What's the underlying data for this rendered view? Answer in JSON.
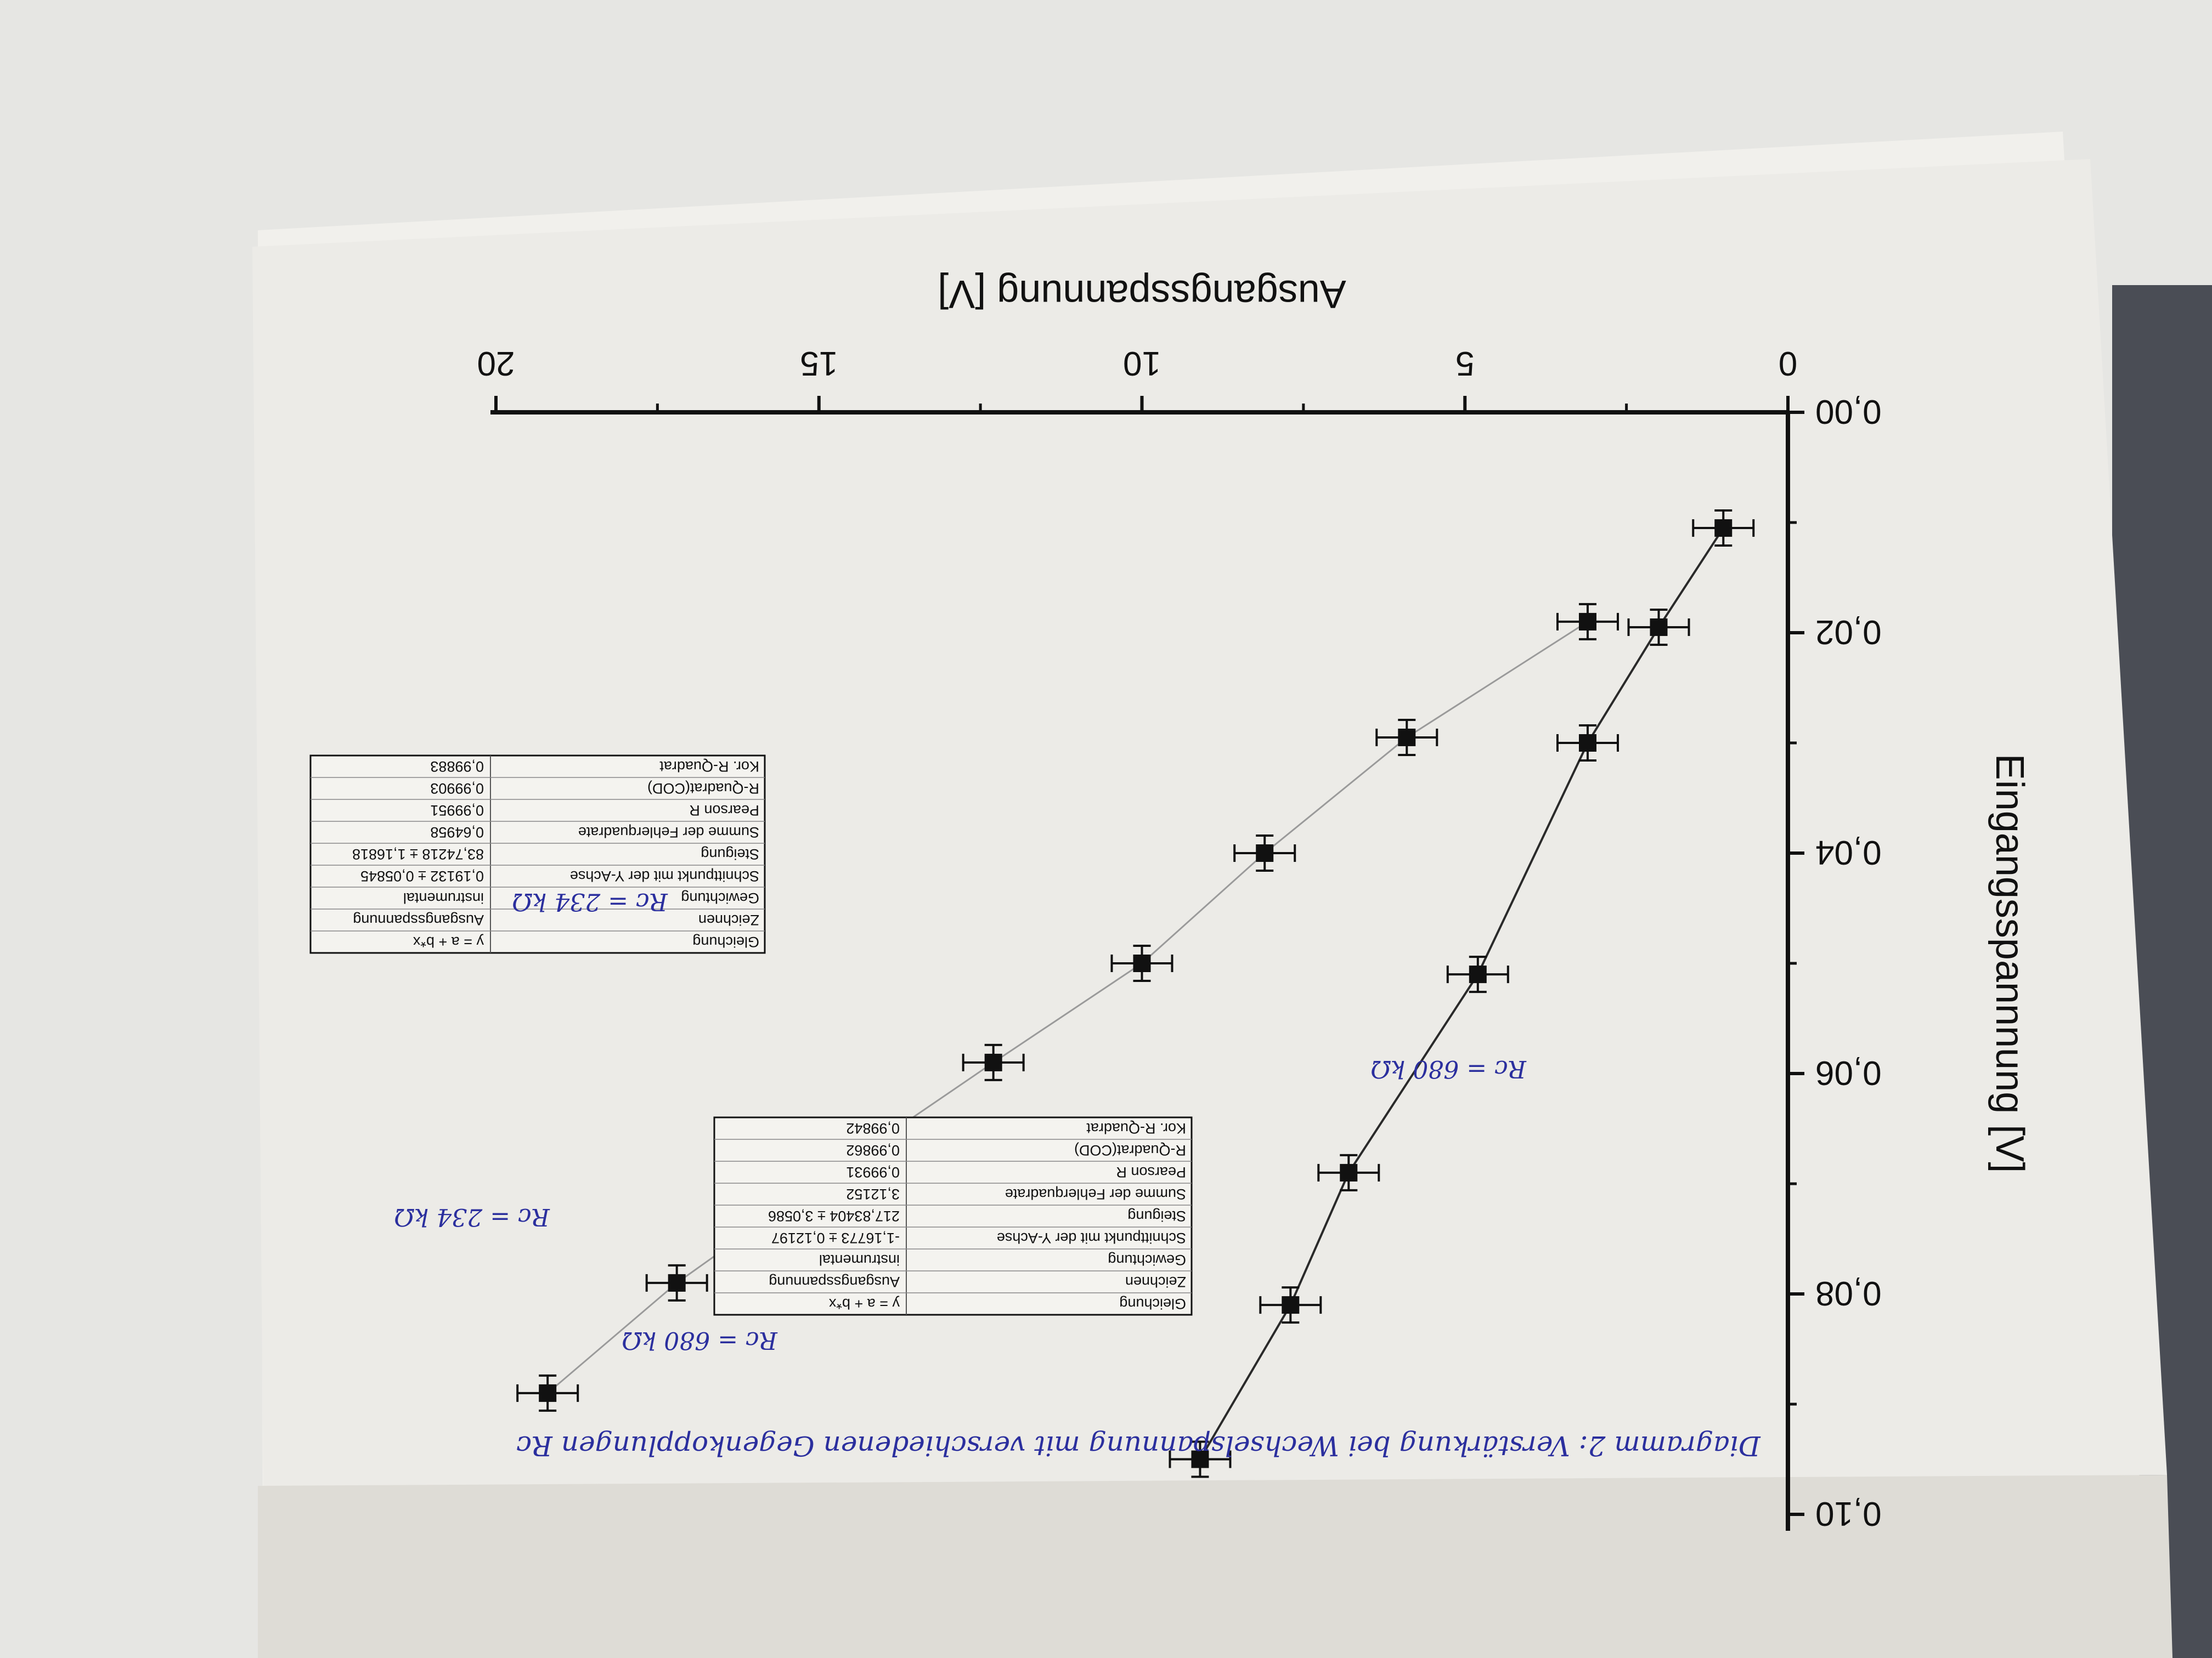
{
  "chart_data": {
    "type": "scatter",
    "xlabel": "Ausgangsspannung [V]",
    "ylabel": "Eingangsspannnung [V]",
    "xlim": [
      0,
      20
    ],
    "ylim": [
      0,
      0.1
    ],
    "x_ticks": [
      "0",
      "5",
      "10",
      "15",
      "20"
    ],
    "y_ticks": [
      "0,00",
      "0,02",
      "0,04",
      "0,06",
      "0,08",
      "0,10"
    ],
    "series": [
      {
        "points": [
          {
            "x": 1.0,
            "y": 0.0105
          },
          {
            "x": 2.0,
            "y": 0.0195
          },
          {
            "x": 3.1,
            "y": 0.03
          },
          {
            "x": 4.8,
            "y": 0.051
          },
          {
            "x": 6.8,
            "y": 0.069
          },
          {
            "x": 7.7,
            "y": 0.081
          },
          {
            "x": 9.1,
            "y": 0.095
          }
        ],
        "fit": {
          "x0": 1.0,
          "x1": 9.1
        }
      },
      {
        "points": [
          {
            "x": 3.1,
            "y": 0.019
          },
          {
            "x": 5.9,
            "y": 0.0295
          },
          {
            "x": 8.1,
            "y": 0.04
          },
          {
            "x": 10.0,
            "y": 0.05
          },
          {
            "x": 12.3,
            "y": 0.059
          },
          {
            "x": 14.8,
            "y": 0.069
          },
          {
            "x": 17.2,
            "y": 0.079
          },
          {
            "x": 19.2,
            "y": 0.089
          }
        ],
        "fit": {
          "x0": 3.1,
          "x1": 19.2
        }
      }
    ]
  },
  "fit_tables": [
    {
      "rows": [
        [
          "Gleichung",
          "y = a + b*x"
        ],
        [
          "Zeichnen",
          "Ausgangsspannung"
        ],
        [
          "Gewichtung",
          "instrumental"
        ],
        [
          "Schnittpunkt mit der Y-Achse",
          "-1,16773 ± 0,12197"
        ],
        [
          "Steigung",
          "217,83404 ± 3,0586"
        ],
        [
          "Summe der Fehlerquadrate",
          "3,12152"
        ],
        [
          "Pearson R",
          "0,99931"
        ],
        [
          "R-Quadrat(COD)",
          "0,99862"
        ],
        [
          "Kor. R-Quadrat",
          "0,99842"
        ]
      ]
    },
    {
      "rows": [
        [
          "Gleichung",
          "y = a + b*x"
        ],
        [
          "Zeichnen",
          "Ausgangsspannung"
        ],
        [
          "Gewichtung",
          "instrumental"
        ],
        [
          "Schnittpunkt mit der Y-Achse",
          "0,19132 ± 0,05845"
        ],
        [
          "Steigung",
          "83,74218 ± 1,16818"
        ],
        [
          "Summe der Fehlerquadrate",
          "0,64958"
        ],
        [
          "Pearson R",
          "0,99951"
        ],
        [
          "R-Quadrat(COD)",
          "0,99903"
        ],
        [
          "Kor. R-Quadrat",
          "0,99883"
        ]
      ]
    }
  ],
  "annotations": {
    "caption": "Diagramm 2: Verstärkung bei Wechselspannung mit verschiedenen Gegenkopplungen Rᴄ",
    "label_680_a": "Rᴄ = 680 kΩ",
    "label_680_b": "Rᴄ = 680 kΩ",
    "label_234_a": "Rᴄ = 234 kΩ",
    "label_234_b": "Rᴄ = 234 kΩ"
  },
  "colors": {
    "paper": "#ecebe7",
    "ink": "#111111",
    "pen": "#2b2f9e",
    "fit_dark": "#2a2a2a",
    "fit_light": "#9a9a9a"
  }
}
